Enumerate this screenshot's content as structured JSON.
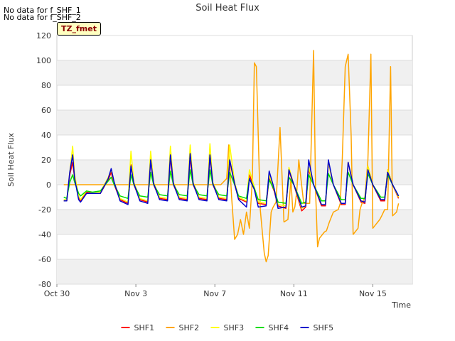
{
  "notes": [
    "No data for f_SHF_1",
    "No data for f_SHF_2"
  ],
  "tz_label": "TZ_fmet",
  "chart_data": {
    "type": "line",
    "title": "Soil Heat Flux",
    "xlabel": "Time",
    "ylabel": "Soil Heat Flux",
    "xlim": [
      0,
      18
    ],
    "ylim": [
      -80,
      120
    ],
    "yticks": [
      -80,
      -60,
      -40,
      -20,
      0,
      20,
      40,
      60,
      80,
      100,
      120
    ],
    "xticks": [
      {
        "value": 0,
        "label": "Oct 30"
      },
      {
        "value": 4,
        "label": "Nov 3"
      },
      {
        "value": 8,
        "label": "Nov 7"
      },
      {
        "value": 12,
        "label": "Nov 11"
      },
      {
        "value": 16,
        "label": "Nov 15"
      }
    ],
    "series": [
      {
        "name": "SHF1",
        "color": "#ff0000",
        "x": [
          0.35,
          0.5,
          0.65,
          0.8,
          0.9,
          1.1,
          1.2,
          1.5,
          1.8,
          2.2,
          2.6,
          2.75,
          2.9,
          3.2,
          3.6,
          3.75,
          3.9,
          4.2,
          4.6,
          4.75,
          4.9,
          5.2,
          5.6,
          5.75,
          5.9,
          6.2,
          6.6,
          6.75,
          6.9,
          7.2,
          7.6,
          7.75,
          7.9,
          8.2,
          8.6,
          8.75,
          9.0,
          9.2,
          9.6,
          9.75,
          10.0,
          10.2,
          10.6,
          10.75,
          11.0,
          11.2,
          11.6,
          11.75,
          12.0,
          12.4,
          12.6,
          12.75,
          13.0,
          13.4,
          13.6,
          13.75,
          14.0,
          14.4,
          14.6,
          14.75,
          15.0,
          15.4,
          15.6,
          15.75,
          16.0,
          16.4,
          16.6,
          16.75,
          17.0,
          17.3
        ],
        "y": [
          -13,
          -13,
          8,
          18,
          5,
          -10,
          -13,
          -6,
          -7,
          -7,
          4,
          10,
          0,
          -12,
          -15,
          16,
          0,
          -12,
          -14,
          20,
          0,
          -11,
          -12,
          22,
          0,
          -11,
          -12,
          22,
          0,
          -11,
          -12,
          23,
          0,
          -11,
          -12,
          20,
          0,
          -11,
          -14,
          8,
          -3,
          -15,
          -16,
          5,
          -5,
          -17,
          -19,
          11,
          0,
          -21,
          -18,
          12,
          0,
          -17,
          -17,
          18,
          0,
          -16,
          -16,
          18,
          0,
          -14,
          -15,
          15,
          0,
          -13,
          -13,
          12,
          0,
          -11
        ]
      },
      {
        "name": "SHF2",
        "color": "#ffa500",
        "x": [
          0.35,
          0.5,
          1.0,
          2.0,
          3.0,
          4.0,
          5.0,
          6.0,
          7.0,
          8.0,
          8.3,
          8.6,
          8.7,
          8.85,
          9.0,
          9.15,
          9.3,
          9.45,
          9.6,
          9.75,
          9.9,
          10.0,
          10.1,
          10.3,
          10.5,
          10.6,
          10.7,
          10.85,
          10.95,
          11.1,
          11.3,
          11.5,
          11.7,
          11.85,
          11.95,
          12.05,
          12.15,
          12.25,
          12.5,
          12.8,
          13.0,
          13.1,
          13.2,
          13.3,
          13.45,
          13.55,
          13.65,
          13.8,
          14.0,
          14.25,
          14.35,
          14.45,
          14.6,
          14.75,
          14.9,
          15.0,
          15.25,
          15.35,
          15.45,
          15.6,
          15.75,
          15.9,
          16.0,
          16.25,
          16.35,
          16.45,
          16.6,
          16.75,
          16.9,
          17.0,
          17.2,
          17.3
        ],
        "y": [
          0,
          0,
          0,
          0,
          0,
          0,
          0,
          0,
          0,
          0,
          0,
          5,
          32,
          -10,
          -44,
          -40,
          -28,
          -40,
          -22,
          -35,
          5,
          98,
          95,
          -20,
          -55,
          -62,
          -57,
          -22,
          -18,
          -14,
          46,
          -30,
          -28,
          5,
          -22,
          -18,
          -5,
          20,
          -15,
          -15,
          108,
          -5,
          -50,
          -43,
          -40,
          -38,
          -37,
          -30,
          -22,
          -20,
          -15,
          20,
          95,
          105,
          40,
          -40,
          -35,
          -20,
          -15,
          -10,
          20,
          105,
          -35,
          -30,
          -28,
          -25,
          -20,
          -20,
          95,
          -25,
          -22,
          -15
        ]
      },
      {
        "name": "SHF3",
        "color": "#ffff00",
        "x": [
          0.35,
          0.5,
          0.65,
          0.8,
          0.9,
          1.1,
          1.2,
          1.5,
          1.8,
          2.2,
          2.6,
          2.75,
          2.9,
          3.2,
          3.6,
          3.75,
          3.9,
          4.2,
          4.6,
          4.75,
          4.9,
          5.2,
          5.6,
          5.75,
          5.9,
          6.2,
          6.6,
          6.75,
          6.9,
          7.2,
          7.6,
          7.75,
          7.9,
          8.2,
          8.6,
          8.75,
          9.0,
          9.2,
          9.6,
          9.75,
          10.0,
          10.2,
          10.6,
          10.75,
          11.0,
          11.2,
          11.6,
          11.75,
          12.0,
          12.4,
          12.6,
          12.75,
          13.0,
          13.4,
          13.6,
          13.75,
          14.0,
          14.4,
          14.6,
          14.75,
          15.0,
          15.4,
          15.6,
          15.75,
          16.0,
          16.4,
          16.6,
          16.75,
          17.0,
          17.3
        ],
        "y": [
          -12,
          -12,
          10,
          31,
          8,
          -9,
          -12,
          -5,
          -6,
          -6,
          6,
          12,
          2,
          -11,
          -14,
          27,
          2,
          -11,
          -13,
          27,
          2,
          -10,
          -11,
          31,
          2,
          -10,
          -11,
          32,
          2,
          -10,
          -11,
          33,
          2,
          -10,
          -11,
          32,
          2,
          -10,
          -13,
          12,
          -2,
          -14,
          -15,
          8,
          -4,
          -16,
          -17,
          14,
          0,
          -19,
          -17,
          14,
          0,
          -16,
          -16,
          18,
          0,
          -15,
          -15,
          18,
          0,
          -13,
          -14,
          15,
          0,
          -12,
          -12,
          12,
          0,
          -10
        ]
      },
      {
        "name": "SHF4",
        "color": "#00dd00",
        "x": [
          0.35,
          0.5,
          0.65,
          0.8,
          0.9,
          1.1,
          1.2,
          1.5,
          1.8,
          2.2,
          2.6,
          2.75,
          2.9,
          3.2,
          3.6,
          3.75,
          3.9,
          4.2,
          4.6,
          4.75,
          4.9,
          5.2,
          5.6,
          5.75,
          5.9,
          6.2,
          6.6,
          6.75,
          6.9,
          7.2,
          7.6,
          7.75,
          7.9,
          8.2,
          8.6,
          8.75,
          9.0,
          9.2,
          9.6,
          9.75,
          10.0,
          10.2,
          10.6,
          10.75,
          11.0,
          11.2,
          11.6,
          11.75,
          12.0,
          12.4,
          12.6,
          12.75,
          13.0,
          13.4,
          13.6,
          13.75,
          14.0,
          14.4,
          14.6,
          14.75,
          15.0,
          15.4,
          15.6,
          15.75,
          16.0,
          16.4,
          16.6,
          16.75,
          17.0,
          17.3
        ],
        "y": [
          -10,
          -11,
          2,
          8,
          2,
          -7,
          -9,
          -5,
          -6,
          -5,
          3,
          6,
          0,
          -9,
          -11,
          8,
          0,
          -9,
          -10,
          10,
          0,
          -8,
          -9,
          11,
          0,
          -8,
          -9,
          12,
          0,
          -8,
          -9,
          12,
          0,
          -8,
          -9,
          10,
          0,
          -9,
          -11,
          5,
          -3,
          -12,
          -13,
          4,
          -4,
          -14,
          -15,
          6,
          0,
          -15,
          -14,
          8,
          0,
          -13,
          -13,
          9,
          0,
          -12,
          -12,
          10,
          0,
          -11,
          -11,
          9,
          0,
          -10,
          -10,
          8,
          0,
          -9
        ]
      },
      {
        "name": "SHF5",
        "color": "#0000cc",
        "x": [
          0.35,
          0.5,
          0.65,
          0.8,
          0.9,
          1.1,
          1.2,
          1.5,
          1.8,
          2.2,
          2.6,
          2.75,
          2.9,
          3.2,
          3.6,
          3.75,
          3.9,
          4.2,
          4.6,
          4.75,
          4.9,
          5.2,
          5.6,
          5.75,
          5.9,
          6.2,
          6.6,
          6.75,
          6.9,
          7.2,
          7.6,
          7.75,
          7.9,
          8.2,
          8.6,
          8.75,
          9.0,
          9.2,
          9.6,
          9.75,
          10.0,
          10.2,
          10.6,
          10.75,
          11.0,
          11.2,
          11.6,
          11.75,
          12.0,
          12.4,
          12.6,
          12.75,
          13.0,
          13.4,
          13.6,
          13.75,
          14.0,
          14.4,
          14.6,
          14.75,
          15.0,
          15.4,
          15.6,
          15.75,
          16.0,
          16.4,
          16.6,
          16.75,
          17.0,
          17.3
        ],
        "y": [
          -13,
          -13,
          10,
          24,
          5,
          -12,
          -14,
          -7,
          -7,
          -7,
          5,
          13,
          2,
          -13,
          -16,
          15,
          1,
          -13,
          -15,
          20,
          1,
          -12,
          -13,
          24,
          1,
          -12,
          -13,
          25,
          1,
          -12,
          -13,
          24,
          1,
          -12,
          -13,
          20,
          1,
          -12,
          -18,
          5,
          -4,
          -18,
          -17,
          11,
          -3,
          -19,
          -18,
          12,
          0,
          -18,
          -17,
          20,
          0,
          -16,
          -16,
          20,
          0,
          -15,
          -15,
          18,
          0,
          -13,
          -14,
          12,
          0,
          -12,
          -12,
          10,
          0,
          -9
        ]
      }
    ],
    "legend": {
      "position": "bottom-center"
    }
  }
}
